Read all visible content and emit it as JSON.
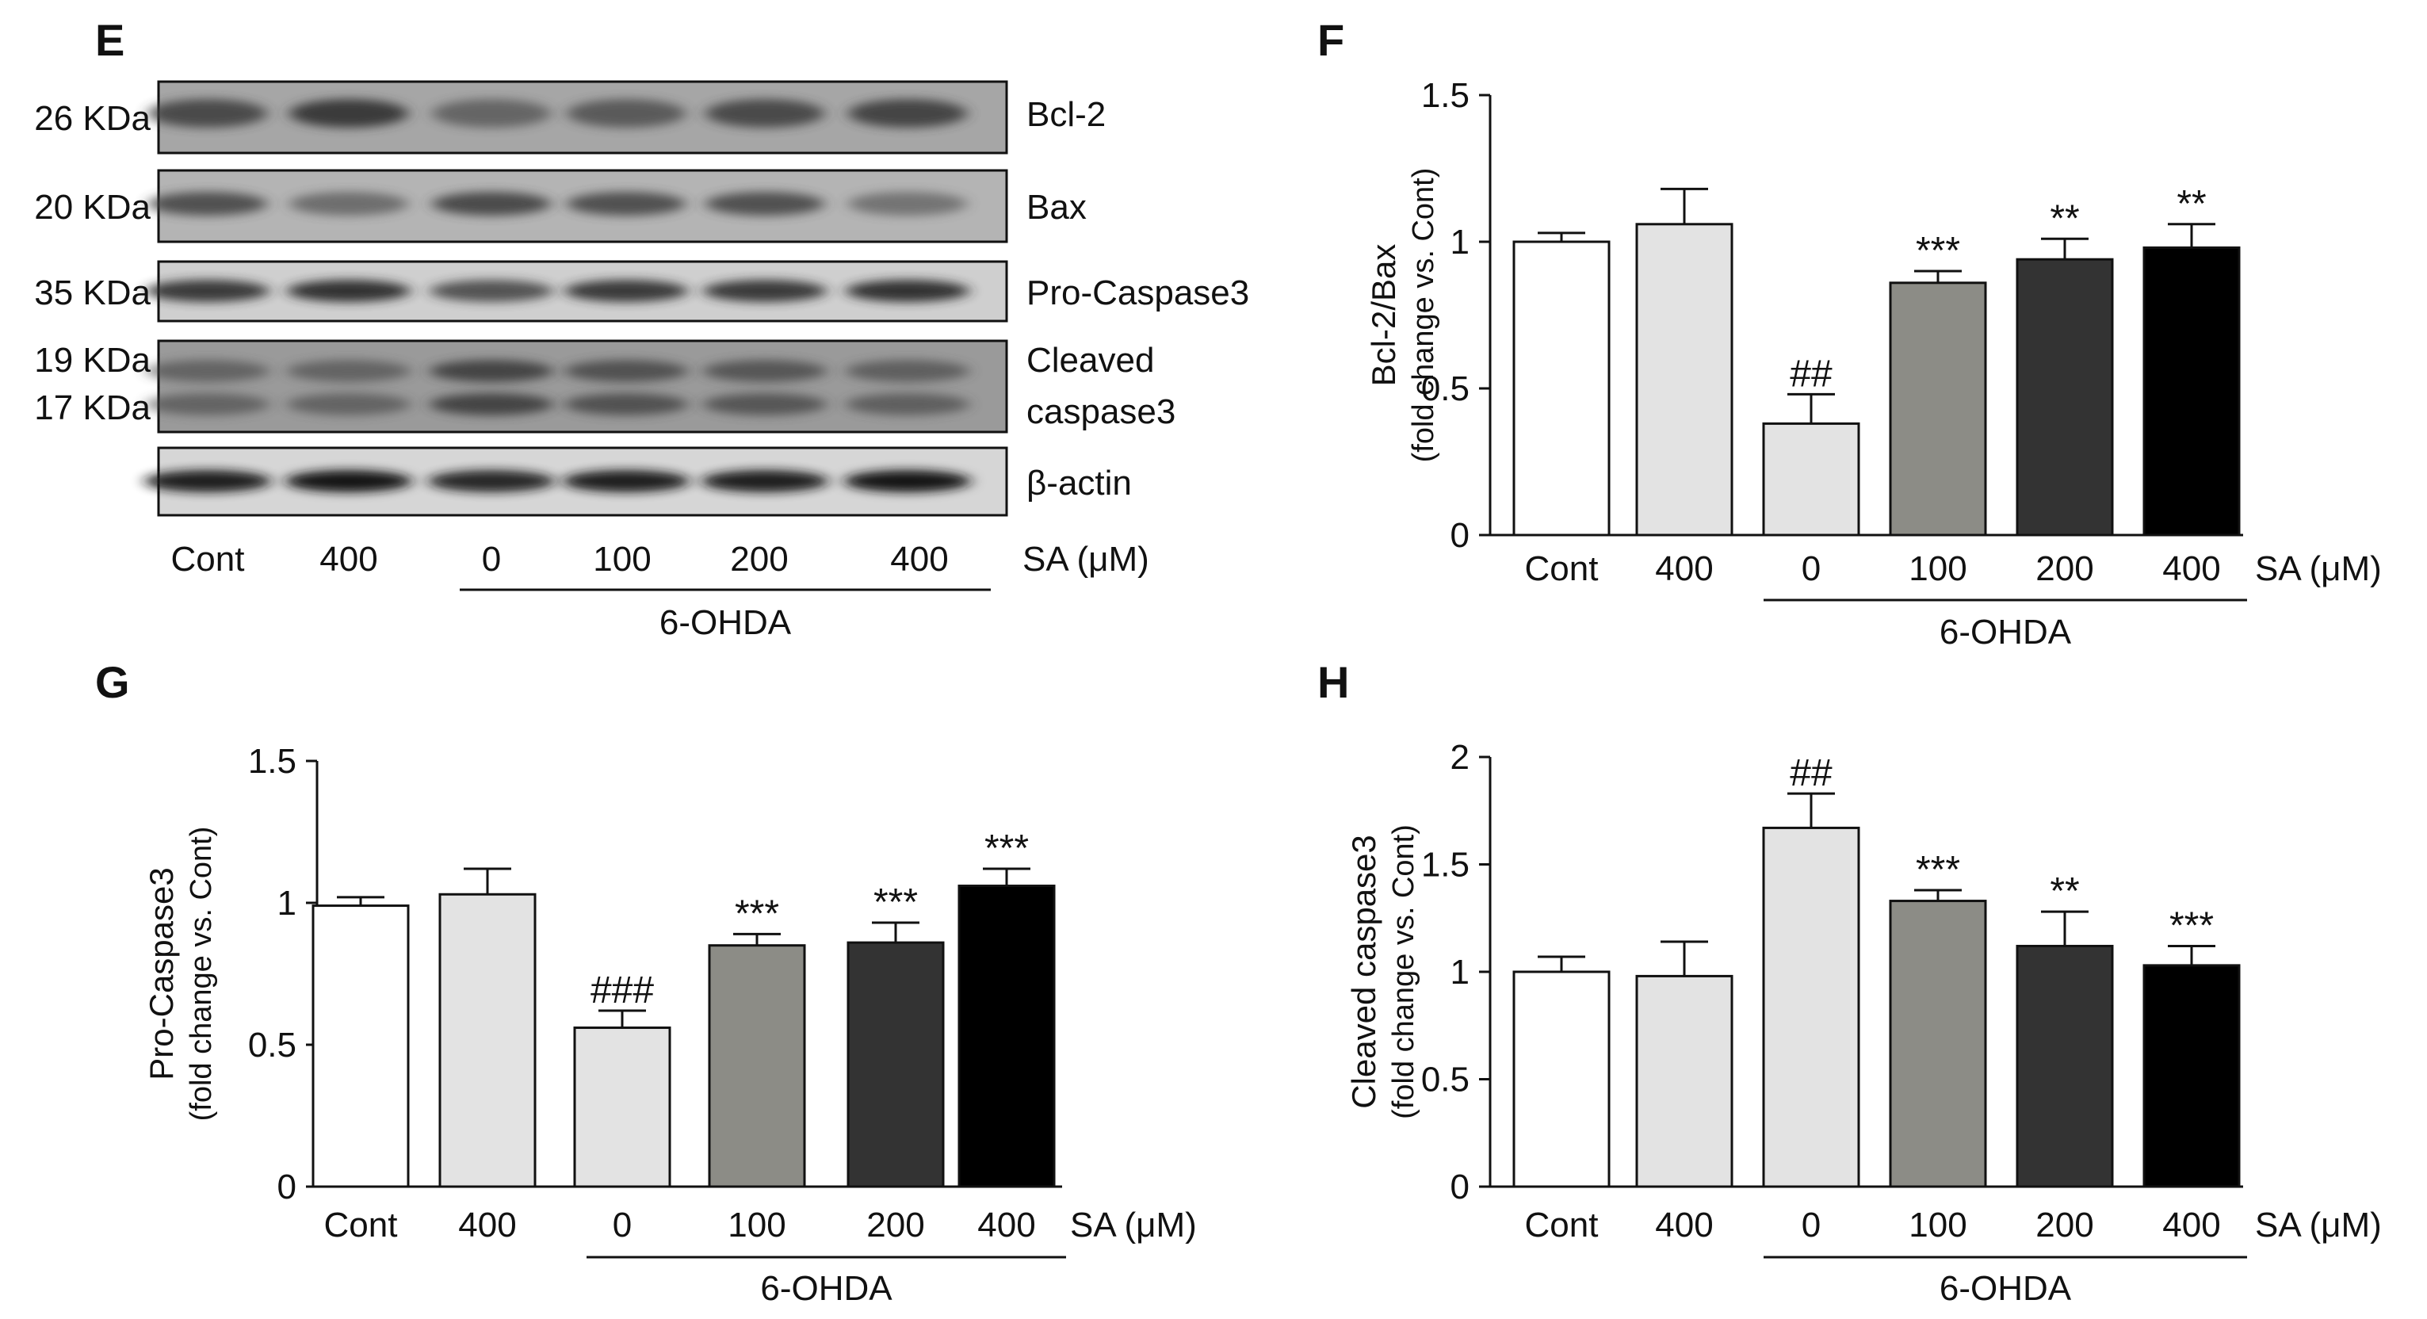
{
  "panels": {
    "E": {
      "letter": "E",
      "blots": [
        {
          "name": "bcl2",
          "label": "Bcl-2",
          "kda": [
            "26 KDa"
          ]
        },
        {
          "name": "bax",
          "label": "Bax",
          "kda": [
            "20 KDa"
          ]
        },
        {
          "name": "pro-caspase3",
          "label": "Pro-Caspase3",
          "kda": [
            "35 KDa"
          ]
        },
        {
          "name": "cleaved-caspase3",
          "label": "Cleaved caspase3",
          "label_lines": [
            "Cleaved",
            "caspase3"
          ],
          "kda": [
            "19 KDa",
            "17 KDa"
          ]
        },
        {
          "name": "beta-actin",
          "label": "β-actin",
          "kda": []
        }
      ],
      "lanes": [
        "Cont",
        "400",
        "0",
        "100",
        "200",
        "400"
      ],
      "lane_suffix": "SA (μM)",
      "group_label": "6-OHDA"
    }
  },
  "chart_data": [
    {
      "panel": "F",
      "type": "bar",
      "title": "",
      "categories": [
        "Cont",
        "400",
        "0",
        "100",
        "200",
        "400"
      ],
      "category_suffix": "SA (μM)",
      "group_label": "6-OHDA",
      "values": [
        1.0,
        1.06,
        0.38,
        0.86,
        0.94,
        0.98
      ],
      "errors": [
        0.03,
        0.12,
        0.1,
        0.04,
        0.07,
        0.08
      ],
      "significance": [
        "",
        "",
        "##",
        "***",
        "**",
        "**"
      ],
      "ylabel": "Bcl-2/Bax",
      "ylabel2": "(fold change vs. Cont)",
      "xlabel": "",
      "ylim": [
        0,
        1.5
      ],
      "yticks": [
        "0",
        "0.5",
        "1",
        "1.5"
      ],
      "bar_colors": [
        "#ffffff",
        "#e3e3e3",
        "#e3e3e3",
        "#8c8c86",
        "#333333",
        "#000000"
      ]
    },
    {
      "panel": "G",
      "type": "bar",
      "title": "",
      "categories": [
        "Cont",
        "400",
        "0",
        "100",
        "200",
        "400"
      ],
      "category_suffix": "SA (μM)",
      "group_label": "6-OHDA",
      "values": [
        0.99,
        1.03,
        0.56,
        0.85,
        0.86,
        1.06
      ],
      "errors": [
        0.03,
        0.09,
        0.06,
        0.04,
        0.07,
        0.06
      ],
      "significance": [
        "",
        "",
        "###",
        "***",
        "***",
        "***"
      ],
      "ylabel": "Pro-Caspase3",
      "ylabel2": "(fold change vs. Cont)",
      "xlabel": "",
      "ylim": [
        0,
        1.5
      ],
      "yticks": [
        "0",
        "0.5",
        "1",
        "1.5"
      ],
      "bar_colors": [
        "#ffffff",
        "#e3e3e3",
        "#e3e3e3",
        "#8c8c86",
        "#333333",
        "#000000"
      ]
    },
    {
      "panel": "H",
      "type": "bar",
      "title": "",
      "categories": [
        "Cont",
        "400",
        "0",
        "100",
        "200",
        "400"
      ],
      "category_suffix": "SA (μM)",
      "group_label": "6-OHDA",
      "values": [
        1.0,
        0.98,
        1.67,
        1.33,
        1.12,
        1.03
      ],
      "errors": [
        0.07,
        0.16,
        0.16,
        0.05,
        0.16,
        0.09
      ],
      "significance": [
        "",
        "",
        "##",
        "***",
        "**",
        "***"
      ],
      "ylabel": "Cleaved caspase3",
      "ylabel2": "(fold change vs. Cont)",
      "xlabel": "",
      "ylim": [
        0,
        2
      ],
      "yticks": [
        "0",
        "0.5",
        "1",
        "1.5",
        "2"
      ],
      "bar_colors": [
        "#ffffff",
        "#e3e3e3",
        "#e3e3e3",
        "#8c8c86",
        "#333333",
        "#000000"
      ]
    }
  ]
}
